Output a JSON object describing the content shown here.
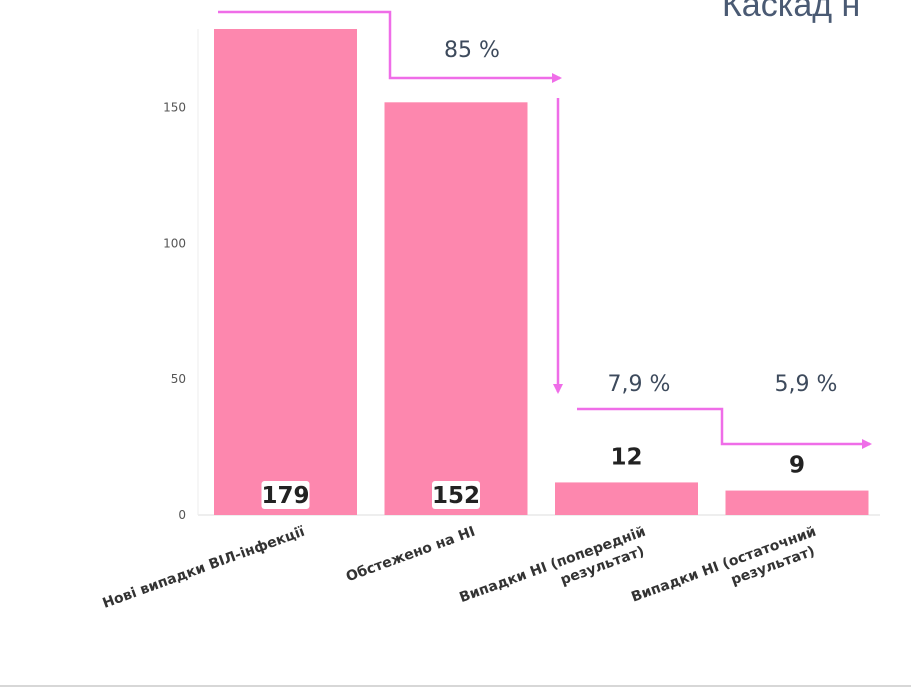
{
  "title": "Каскад н",
  "colors": {
    "bar": "#fd87ae",
    "arrow": "#ef6de8",
    "percent_text": "#3d4a5c",
    "tick_text": "#555555",
    "value_text": "#222222"
  },
  "chart_data": {
    "type": "bar",
    "categories": [
      "Нові випадки ВІЛ-інфекції",
      "Обстежено на НІ",
      "Випадки НІ (попередній результат)",
      "Випадки НІ (остаточний результат)"
    ],
    "values": [
      179,
      152,
      12,
      9
    ],
    "value_labels": [
      "179",
      "152",
      "12",
      "9"
    ],
    "yticks": [
      0,
      50,
      100,
      150
    ],
    "ytick_labels": [
      "0",
      "50",
      "100",
      "150"
    ],
    "ylim": [
      0,
      180
    ],
    "grid": false,
    "annotations": [
      "85 %",
      "7,9 %",
      "5,9 %"
    ]
  }
}
